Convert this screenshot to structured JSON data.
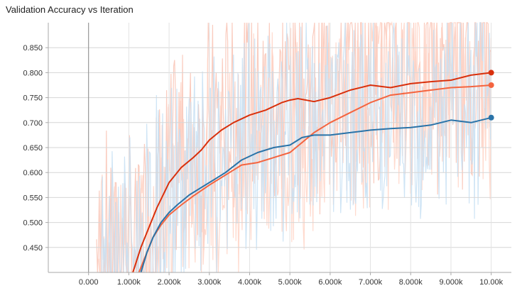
{
  "chart_data": {
    "type": "line",
    "title": "Validation Accuracy vs Iteration",
    "xlabel": "",
    "ylabel": "",
    "xlim": [
      -1000,
      10500
    ],
    "ylim": [
      0.4,
      0.9
    ],
    "x_ticks": [
      {
        "value": 0,
        "label": "0.000"
      },
      {
        "value": 1000,
        "label": "1.000k"
      },
      {
        "value": 2000,
        "label": "2.000k"
      },
      {
        "value": 3000,
        "label": "3.000k"
      },
      {
        "value": 4000,
        "label": "4.000k"
      },
      {
        "value": 5000,
        "label": "5.000k"
      },
      {
        "value": 6000,
        "label": "6.000k"
      },
      {
        "value": 7000,
        "label": "7.000k"
      },
      {
        "value": 8000,
        "label": "8.000k"
      },
      {
        "value": 9000,
        "label": "9.000k"
      },
      {
        "value": 10000,
        "label": "10.00k"
      }
    ],
    "y_ticks": [
      {
        "value": 0.45,
        "label": "0.450"
      },
      {
        "value": 0.5,
        "label": "0.500"
      },
      {
        "value": 0.55,
        "label": "0.550"
      },
      {
        "value": 0.6,
        "label": "0.600"
      },
      {
        "value": 0.65,
        "label": "0.650"
      },
      {
        "value": 0.7,
        "label": "0.700"
      },
      {
        "value": 0.75,
        "label": "0.750"
      },
      {
        "value": 0.8,
        "label": "0.800"
      },
      {
        "value": 0.85,
        "label": "0.850"
      }
    ],
    "grid": true,
    "series": [
      {
        "color": "#d9300c",
        "raw_color": "#f9c3b4",
        "x": [
          1100,
          1300,
          1500,
          1700,
          2000,
          2300,
          2600,
          2800,
          3000,
          3300,
          3600,
          4000,
          4400,
          4800,
          5000,
          5200,
          5600,
          6000,
          6500,
          7000,
          7500,
          8000,
          8500,
          9000,
          9500,
          10000
        ],
        "y": [
          0.4,
          0.45,
          0.49,
          0.53,
          0.58,
          0.61,
          0.63,
          0.645,
          0.665,
          0.685,
          0.7,
          0.715,
          0.725,
          0.74,
          0.745,
          0.748,
          0.742,
          0.75,
          0.765,
          0.775,
          0.77,
          0.778,
          0.782,
          0.785,
          0.795,
          0.8
        ]
      },
      {
        "color": "#f4643f",
        "raw_color": "#ffd4c6",
        "x": [
          1250,
          1400,
          1600,
          1800,
          2000,
          2300,
          2600,
          3000,
          3400,
          3800,
          4200,
          4600,
          5000,
          5300,
          5600,
          6000,
          6500,
          7000,
          7500,
          8000,
          8500,
          9000,
          9500,
          10000
        ],
        "y": [
          0.4,
          0.43,
          0.47,
          0.495,
          0.515,
          0.535,
          0.553,
          0.575,
          0.595,
          0.615,
          0.62,
          0.63,
          0.64,
          0.66,
          0.68,
          0.7,
          0.72,
          0.74,
          0.755,
          0.76,
          0.765,
          0.77,
          0.772,
          0.775
        ]
      },
      {
        "color": "#2a73a8",
        "raw_color": "#c5dff3",
        "x": [
          1300,
          1450,
          1600,
          1800,
          2000,
          2200,
          2500,
          2800,
          3100,
          3400,
          3800,
          4200,
          4600,
          5000,
          5300,
          5600,
          6000,
          6500,
          7000,
          7500,
          8000,
          8500,
          9000,
          9500,
          10000
        ],
        "y": [
          0.4,
          0.44,
          0.47,
          0.5,
          0.52,
          0.535,
          0.555,
          0.57,
          0.585,
          0.6,
          0.625,
          0.64,
          0.65,
          0.655,
          0.67,
          0.675,
          0.675,
          0.68,
          0.685,
          0.688,
          0.69,
          0.695,
          0.705,
          0.7,
          0.71
        ]
      }
    ]
  }
}
